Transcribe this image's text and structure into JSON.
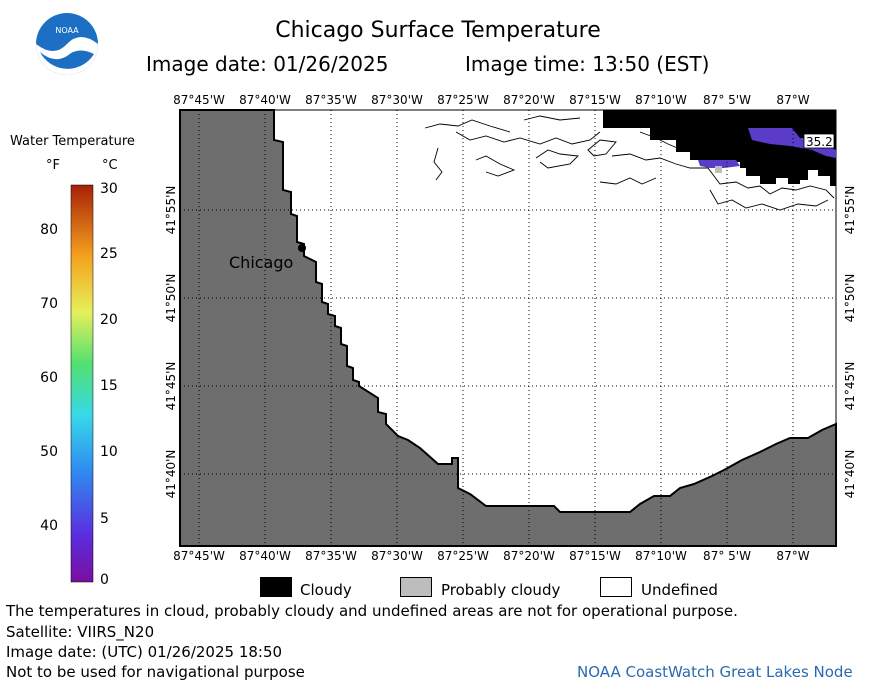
{
  "header": {
    "title": "Chicago Surface Temperature",
    "image_date": "Image date: 01/26/2025",
    "image_time": "Image time: 13:50 (EST)"
  },
  "logo": {
    "text": "NOAA",
    "icon": "noaa-logo-icon"
  },
  "legend": {
    "title": "Water Temperature",
    "unit_f": "°F",
    "unit_c": "°C",
    "f_ticks": [
      "80",
      "70",
      "60",
      "50",
      "40"
    ],
    "c_ticks": [
      "30",
      "25",
      "20",
      "15",
      "10",
      "5",
      "0"
    ],
    "c_range": [
      0,
      30
    ]
  },
  "map": {
    "lon_labels": [
      "87°45'W",
      "87°40'W",
      "87°35'W",
      "87°30'W",
      "87°25'W",
      "87°20'W",
      "87°15'W",
      "87°10'W",
      "87° 5'W",
      "87°W"
    ],
    "lat_labels": [
      "41°55'N",
      "41°50'N",
      "41°45'N",
      "41°40'N"
    ],
    "city": "Chicago",
    "temperature_label": "35.2",
    "colors": {
      "land": "#6e6e6e",
      "cloud": "#000000",
      "probably_cloudy": "#bdbdbd",
      "water_cold": "#5a3cc8",
      "undefined": "#ffffff"
    }
  },
  "key": {
    "cloudy": "Cloudy",
    "probably_cloudy": "Probably cloudy",
    "undefined": "Undefined"
  },
  "footer": {
    "note": "The temperatures in cloud, probably cloudy and undefined areas are not for operational purpose.",
    "satellite": "Satellite: VIIRS_N20",
    "utc_date": "Image date: (UTC) 01/26/2025  18:50",
    "navigation": "Not to be used for navigational purpose",
    "credit": "NOAA CoastWatch Great Lakes Node"
  }
}
